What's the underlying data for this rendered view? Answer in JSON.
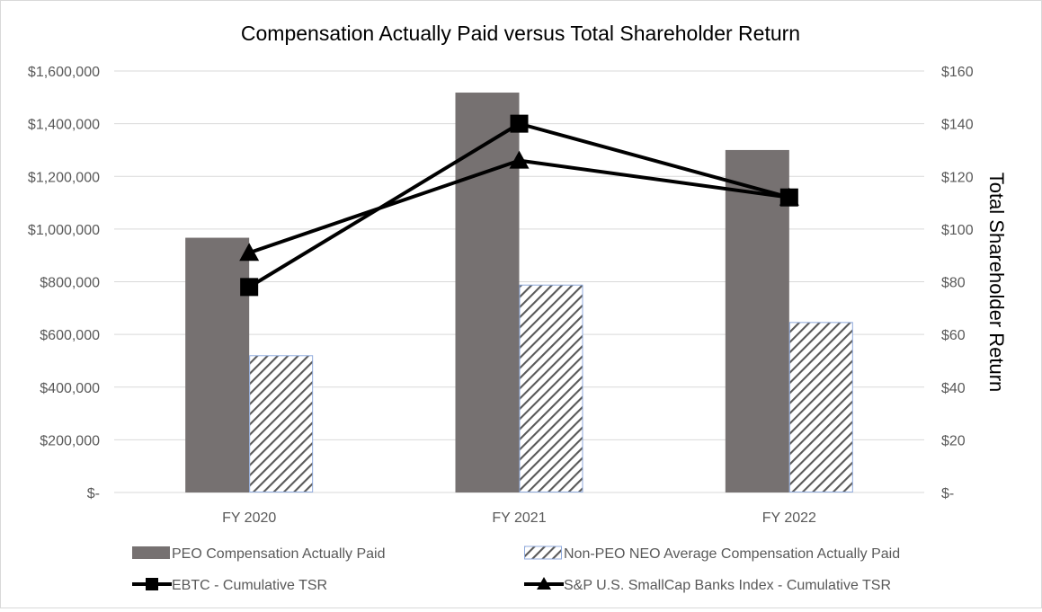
{
  "chart_data": {
    "type": "bar",
    "title": "Compensation Actually Paid versus Total Shareholder Return",
    "categories": [
      "FY 2020",
      "FY 2021",
      "FY 2022"
    ],
    "series": [
      {
        "name": "PEO Compensation Actually Paid",
        "kind": "bar",
        "axis": "left",
        "values": [
          967000,
          1518000,
          1300000
        ],
        "color": "#767171"
      },
      {
        "name": "Non-PEO NEO Average Compensation Actually Paid",
        "kind": "bar-hatched",
        "axis": "left",
        "values": [
          521000,
          789000,
          647000
        ],
        "color": "#595959"
      },
      {
        "name": "EBTC - Cumulative TSR",
        "kind": "line",
        "marker": "square",
        "axis": "right",
        "values": [
          78,
          140,
          112
        ],
        "color": "#000000"
      },
      {
        "name": "S&P U.S. SmallCap Banks Index - Cumulative TSR",
        "kind": "line",
        "marker": "triangle",
        "axis": "right",
        "values": [
          91,
          126,
          112
        ],
        "color": "#000000"
      }
    ],
    "y_left": {
      "min": 0,
      "max": 1600000,
      "step": 200000,
      "tick_labels": [
        "$-",
        "$200,000",
        "$400,000",
        "$600,000",
        "$800,000",
        "$1,000,000",
        "$1,200,000",
        "$1,400,000",
        "$1,600,000"
      ]
    },
    "y_right": {
      "min": 0,
      "max": 160,
      "step": 20,
      "label": "Total Shareholder Return",
      "tick_labels": [
        "$-",
        "$20",
        "$40",
        "$60",
        "$80",
        "$100",
        "$120",
        "$140",
        "$160"
      ]
    },
    "grid": true,
    "legend_position": "bottom"
  }
}
